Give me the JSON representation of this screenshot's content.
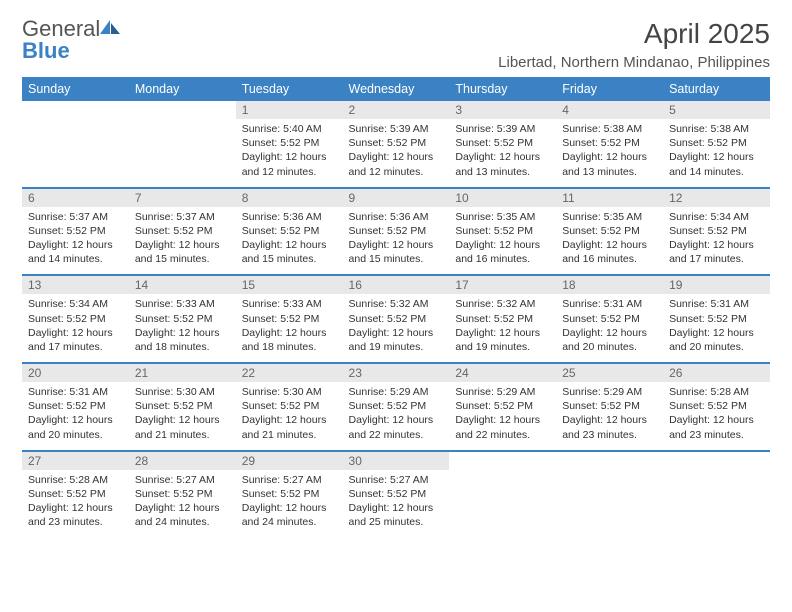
{
  "logo": {
    "word1": "General",
    "word2": "Blue"
  },
  "title": "April 2025",
  "subtitle": "Libertad, Northern Mindanao, Philippines",
  "colors": {
    "accent": "#3b82c4",
    "header_text": "#ffffff",
    "daynum_bg": "#e8e8e8",
    "body_text": "#333333"
  },
  "weekdays": [
    "Sunday",
    "Monday",
    "Tuesday",
    "Wednesday",
    "Thursday",
    "Friday",
    "Saturday"
  ],
  "weeks": [
    [
      {
        "empty": true
      },
      {
        "empty": true
      },
      {
        "n": "1",
        "sunrise": "5:40 AM",
        "sunset": "5:52 PM",
        "dl": "12 hours and 12 minutes."
      },
      {
        "n": "2",
        "sunrise": "5:39 AM",
        "sunset": "5:52 PM",
        "dl": "12 hours and 12 minutes."
      },
      {
        "n": "3",
        "sunrise": "5:39 AM",
        "sunset": "5:52 PM",
        "dl": "12 hours and 13 minutes."
      },
      {
        "n": "4",
        "sunrise": "5:38 AM",
        "sunset": "5:52 PM",
        "dl": "12 hours and 13 minutes."
      },
      {
        "n": "5",
        "sunrise": "5:38 AM",
        "sunset": "5:52 PM",
        "dl": "12 hours and 14 minutes."
      }
    ],
    [
      {
        "n": "6",
        "sunrise": "5:37 AM",
        "sunset": "5:52 PM",
        "dl": "12 hours and 14 minutes."
      },
      {
        "n": "7",
        "sunrise": "5:37 AM",
        "sunset": "5:52 PM",
        "dl": "12 hours and 15 minutes."
      },
      {
        "n": "8",
        "sunrise": "5:36 AM",
        "sunset": "5:52 PM",
        "dl": "12 hours and 15 minutes."
      },
      {
        "n": "9",
        "sunrise": "5:36 AM",
        "sunset": "5:52 PM",
        "dl": "12 hours and 15 minutes."
      },
      {
        "n": "10",
        "sunrise": "5:35 AM",
        "sunset": "5:52 PM",
        "dl": "12 hours and 16 minutes."
      },
      {
        "n": "11",
        "sunrise": "5:35 AM",
        "sunset": "5:52 PM",
        "dl": "12 hours and 16 minutes."
      },
      {
        "n": "12",
        "sunrise": "5:34 AM",
        "sunset": "5:52 PM",
        "dl": "12 hours and 17 minutes."
      }
    ],
    [
      {
        "n": "13",
        "sunrise": "5:34 AM",
        "sunset": "5:52 PM",
        "dl": "12 hours and 17 minutes."
      },
      {
        "n": "14",
        "sunrise": "5:33 AM",
        "sunset": "5:52 PM",
        "dl": "12 hours and 18 minutes."
      },
      {
        "n": "15",
        "sunrise": "5:33 AM",
        "sunset": "5:52 PM",
        "dl": "12 hours and 18 minutes."
      },
      {
        "n": "16",
        "sunrise": "5:32 AM",
        "sunset": "5:52 PM",
        "dl": "12 hours and 19 minutes."
      },
      {
        "n": "17",
        "sunrise": "5:32 AM",
        "sunset": "5:52 PM",
        "dl": "12 hours and 19 minutes."
      },
      {
        "n": "18",
        "sunrise": "5:31 AM",
        "sunset": "5:52 PM",
        "dl": "12 hours and 20 minutes."
      },
      {
        "n": "19",
        "sunrise": "5:31 AM",
        "sunset": "5:52 PM",
        "dl": "12 hours and 20 minutes."
      }
    ],
    [
      {
        "n": "20",
        "sunrise": "5:31 AM",
        "sunset": "5:52 PM",
        "dl": "12 hours and 20 minutes."
      },
      {
        "n": "21",
        "sunrise": "5:30 AM",
        "sunset": "5:52 PM",
        "dl": "12 hours and 21 minutes."
      },
      {
        "n": "22",
        "sunrise": "5:30 AM",
        "sunset": "5:52 PM",
        "dl": "12 hours and 21 minutes."
      },
      {
        "n": "23",
        "sunrise": "5:29 AM",
        "sunset": "5:52 PM",
        "dl": "12 hours and 22 minutes."
      },
      {
        "n": "24",
        "sunrise": "5:29 AM",
        "sunset": "5:52 PM",
        "dl": "12 hours and 22 minutes."
      },
      {
        "n": "25",
        "sunrise": "5:29 AM",
        "sunset": "5:52 PM",
        "dl": "12 hours and 23 minutes."
      },
      {
        "n": "26",
        "sunrise": "5:28 AM",
        "sunset": "5:52 PM",
        "dl": "12 hours and 23 minutes."
      }
    ],
    [
      {
        "n": "27",
        "sunrise": "5:28 AM",
        "sunset": "5:52 PM",
        "dl": "12 hours and 23 minutes."
      },
      {
        "n": "28",
        "sunrise": "5:27 AM",
        "sunset": "5:52 PM",
        "dl": "12 hours and 24 minutes."
      },
      {
        "n": "29",
        "sunrise": "5:27 AM",
        "sunset": "5:52 PM",
        "dl": "12 hours and 24 minutes."
      },
      {
        "n": "30",
        "sunrise": "5:27 AM",
        "sunset": "5:52 PM",
        "dl": "12 hours and 25 minutes."
      },
      {
        "empty": true
      },
      {
        "empty": true
      },
      {
        "empty": true
      }
    ]
  ],
  "labels": {
    "sunrise": "Sunrise:",
    "sunset": "Sunset:",
    "daylight": "Daylight:"
  }
}
